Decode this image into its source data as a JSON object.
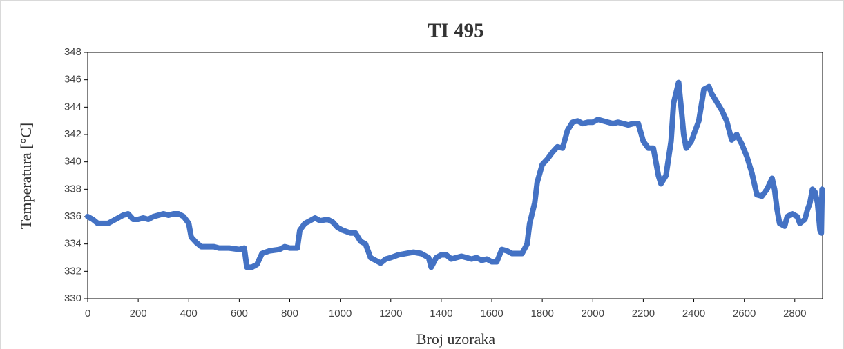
{
  "chart_data": {
    "type": "line",
    "title": "TI 495",
    "x_label": "Broj uzoraka",
    "y_label": "Temperatura [°C]",
    "xlim": [
      0,
      2910
    ],
    "xticks": [
      0,
      200,
      400,
      600,
      800,
      1000,
      1200,
      1400,
      1600,
      1800,
      2000,
      2200,
      2400,
      2600,
      2800
    ],
    "ylim": [
      330,
      348
    ],
    "yticks": [
      330,
      332,
      334,
      336,
      338,
      340,
      342,
      344,
      346,
      348
    ],
    "series": [
      {
        "name": "TI 495",
        "color": "#4472c4",
        "x": [
          0,
          20,
          40,
          60,
          80,
          100,
          120,
          140,
          160,
          180,
          200,
          220,
          240,
          260,
          280,
          300,
          320,
          340,
          360,
          380,
          400,
          410,
          430,
          450,
          480,
          500,
          520,
          560,
          600,
          620,
          630,
          650,
          670,
          690,
          720,
          760,
          780,
          800,
          830,
          840,
          860,
          880,
          900,
          920,
          950,
          970,
          990,
          1010,
          1040,
          1060,
          1080,
          1100,
          1120,
          1140,
          1160,
          1180,
          1200,
          1230,
          1260,
          1290,
          1320,
          1350,
          1360,
          1380,
          1400,
          1420,
          1440,
          1460,
          1480,
          1500,
          1520,
          1540,
          1560,
          1580,
          1600,
          1620,
          1640,
          1660,
          1680,
          1700,
          1720,
          1740,
          1750,
          1770,
          1780,
          1800,
          1820,
          1840,
          1860,
          1880,
          1900,
          1920,
          1940,
          1960,
          1980,
          2000,
          2020,
          2040,
          2060,
          2080,
          2100,
          2120,
          2140,
          2160,
          2180,
          2200,
          2220,
          2240,
          2260,
          2270,
          2290,
          2310,
          2320,
          2340,
          2350,
          2360,
          2370,
          2390,
          2400,
          2420,
          2440,
          2460,
          2470,
          2490,
          2510,
          2530,
          2550,
          2570,
          2590,
          2610,
          2630,
          2650,
          2670,
          2690,
          2710,
          2720,
          2730,
          2740,
          2760,
          2770,
          2790,
          2810,
          2820,
          2840,
          2850,
          2860,
          2870,
          2880,
          2890,
          2900,
          2905,
          2908
        ],
        "values": [
          336,
          335.8,
          335.5,
          335.5,
          335.5,
          335.7,
          335.9,
          336.1,
          336.2,
          335.8,
          335.8,
          335.9,
          335.8,
          336,
          336.1,
          336.2,
          336.1,
          336.2,
          336.2,
          336,
          335.5,
          334.5,
          334.1,
          333.8,
          333.8,
          333.8,
          333.7,
          333.7,
          333.6,
          333.7,
          332.3,
          332.3,
          332.5,
          333.3,
          333.5,
          333.6,
          333.8,
          333.7,
          333.7,
          335,
          335.5,
          335.7,
          335.9,
          335.7,
          335.8,
          335.6,
          335.2,
          335,
          334.8,
          334.8,
          334.2,
          334,
          333,
          332.8,
          332.6,
          332.9,
          333,
          333.2,
          333.3,
          333.4,
          333.3,
          333,
          332.3,
          333,
          333.2,
          333.2,
          332.9,
          333,
          333.1,
          333,
          332.9,
          333,
          332.8,
          332.9,
          332.7,
          332.7,
          333.6,
          333.5,
          333.3,
          333.3,
          333.3,
          334,
          335.5,
          337,
          338.5,
          339.8,
          340.2,
          340.7,
          341.1,
          341,
          342.3,
          342.9,
          343,
          342.8,
          342.9,
          342.9,
          343.1,
          343,
          342.9,
          342.8,
          342.9,
          342.8,
          342.7,
          342.8,
          342.8,
          341.5,
          341,
          341,
          339,
          338.4,
          339,
          341.5,
          344.3,
          345.8,
          344,
          342,
          341,
          341.5,
          342,
          343,
          345.3,
          345.5,
          345,
          344.4,
          343.8,
          343,
          341.6,
          342,
          341.3,
          340.4,
          339.2,
          337.6,
          337.5,
          338,
          338.8,
          338,
          336.5,
          335.5,
          335.3,
          336,
          336.2,
          336,
          335.5,
          335.8,
          336.5,
          337,
          338,
          337.8,
          337,
          335,
          334.8,
          338
        ]
      }
    ]
  }
}
